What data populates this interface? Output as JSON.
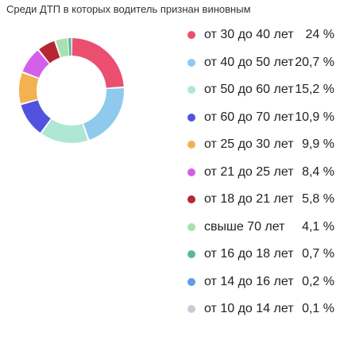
{
  "title": "Среди ДТП в которых водитель признан виновным",
  "chart_data": {
    "type": "pie",
    "title": "Среди ДТП в которых водитель признан виновным",
    "variant": "exploded-donut",
    "legend_position": "right",
    "categories": [
      "от 30 до 40 лет",
      "от 40 до 50 лет",
      "от 50 до 60 лет",
      "от 60 до 70 лет",
      "от 25 до 30 лет",
      "от 21 до 25 лет",
      "от 18 до 21 лет",
      "свыше 70 лет",
      "от 16 до 18 лет",
      "от 14 до 16 лет",
      "от 10 до 14 лет"
    ],
    "values": [
      24,
      20.7,
      15.2,
      10.9,
      9.9,
      8.4,
      5.8,
      4.1,
      0.7,
      0.2,
      0.1
    ],
    "value_labels": [
      "24 %",
      "20,7 %",
      "15,2 %",
      "10,9 %",
      "9,9 %",
      "8,4 %",
      "5,8 %",
      "4,1 %",
      "0,7 %",
      "0,2 %",
      "0,1 %"
    ],
    "colors": [
      "#ea4f6f",
      "#8fc9ee",
      "#aee7d4",
      "#5153df",
      "#f2b24f",
      "#d45fe8",
      "#b52735",
      "#a7e0b1",
      "#5ab98f",
      "#5f9ee0",
      "#c8ccd8"
    ]
  }
}
